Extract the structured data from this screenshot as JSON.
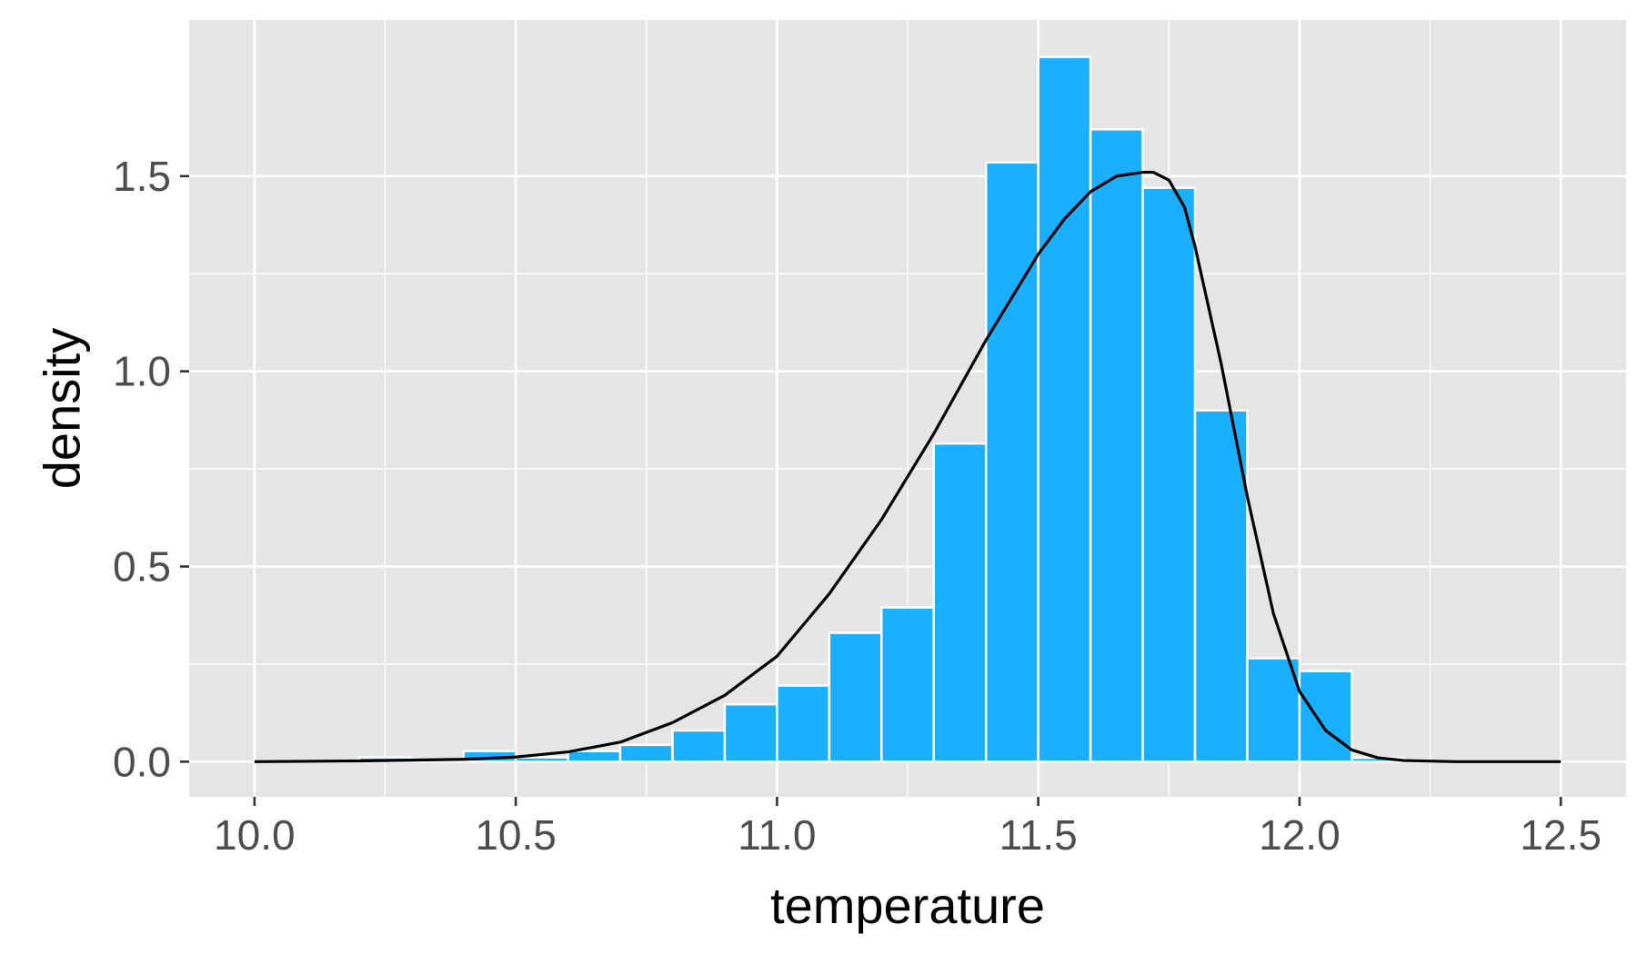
{
  "chart_data": {
    "type": "bar",
    "subtype": "histogram-with-density-curve",
    "xlabel": "temperature",
    "ylabel": "density",
    "xlim": [
      9.875,
      12.625
    ],
    "ylim": [
      -0.09,
      1.9
    ],
    "x_ticks": [
      10.0,
      10.5,
      11.0,
      11.5,
      12.0,
      12.5
    ],
    "x_tick_labels": [
      "10.0",
      "10.5",
      "11.0",
      "11.5",
      "12.0",
      "12.5"
    ],
    "y_ticks": [
      0.0,
      0.5,
      1.0,
      1.5
    ],
    "y_tick_labels": [
      "0.0",
      "0.5",
      "1.0",
      "1.5"
    ],
    "grid": true,
    "bin_width": 0.1,
    "bins": [
      {
        "x": 10.25,
        "density": 0.011
      },
      {
        "x": 10.35,
        "density": 0.0
      },
      {
        "x": 10.45,
        "density": 0.027
      },
      {
        "x": 10.55,
        "density": 0.011
      },
      {
        "x": 10.65,
        "density": 0.027
      },
      {
        "x": 10.75,
        "density": 0.043
      },
      {
        "x": 10.85,
        "density": 0.08
      },
      {
        "x": 10.95,
        "density": 0.147
      },
      {
        "x": 11.05,
        "density": 0.195
      },
      {
        "x": 11.15,
        "density": 0.33
      },
      {
        "x": 11.25,
        "density": 0.395
      },
      {
        "x": 11.35,
        "density": 0.815
      },
      {
        "x": 11.45,
        "density": 1.535
      },
      {
        "x": 11.55,
        "density": 1.805
      },
      {
        "x": 11.65,
        "density": 1.62
      },
      {
        "x": 11.75,
        "density": 1.47
      },
      {
        "x": 11.85,
        "density": 0.9
      },
      {
        "x": 11.95,
        "density": 0.265
      },
      {
        "x": 12.05,
        "density": 0.232
      },
      {
        "x": 12.15,
        "density": 0.01
      }
    ],
    "curve": {
      "x": [
        10.0,
        10.2,
        10.4,
        10.5,
        10.6,
        10.7,
        10.8,
        10.9,
        11.0,
        11.1,
        11.2,
        11.3,
        11.4,
        11.5,
        11.55,
        11.6,
        11.65,
        11.7,
        11.72,
        11.75,
        11.78,
        11.8,
        11.85,
        11.9,
        11.95,
        12.0,
        12.05,
        12.1,
        12.15,
        12.2,
        12.3,
        12.5
      ],
      "y": [
        0.0,
        0.002,
        0.006,
        0.012,
        0.025,
        0.05,
        0.1,
        0.17,
        0.27,
        0.43,
        0.62,
        0.84,
        1.08,
        1.3,
        1.39,
        1.46,
        1.5,
        1.51,
        1.51,
        1.49,
        1.42,
        1.32,
        1.02,
        0.68,
        0.38,
        0.18,
        0.08,
        0.03,
        0.01,
        0.003,
        0.0,
        0.0
      ]
    },
    "colors": {
      "panel_background": "#e5e5e5",
      "gridline": "#ffffff",
      "bar_fill": "#1aafff",
      "bar_outline": "#ffffff",
      "curve": "#000000",
      "tick_text": "#4d4d4d",
      "tick_mark": "#333333"
    }
  }
}
